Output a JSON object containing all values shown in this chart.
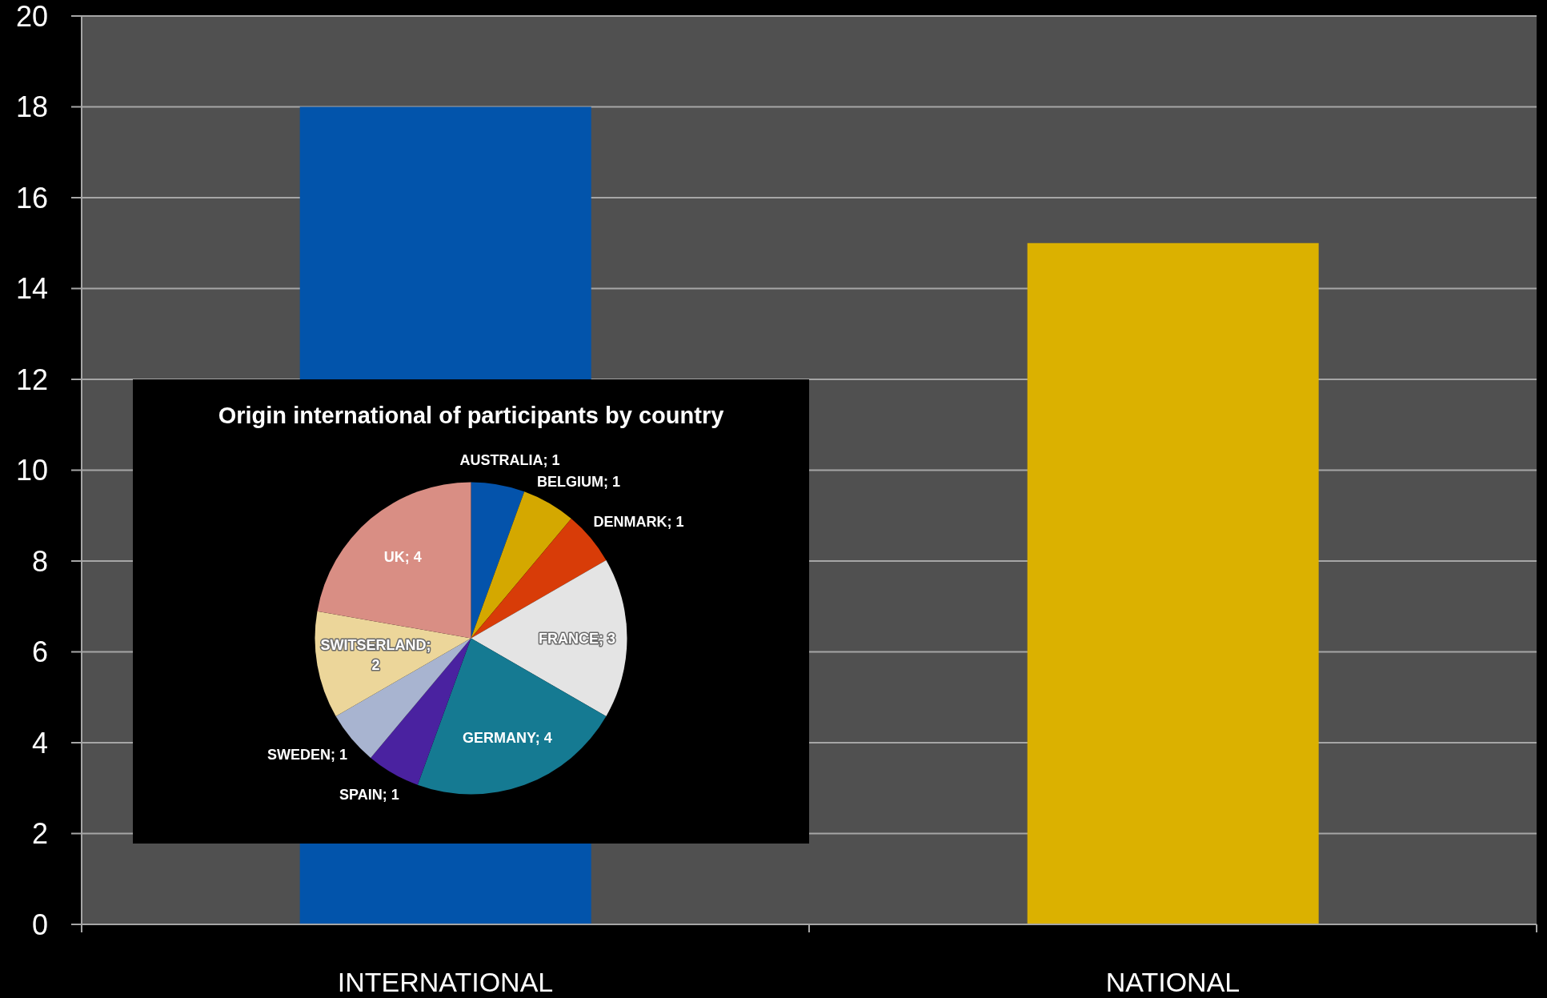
{
  "chart_data": [
    {
      "type": "bar",
      "categories": [
        "INTERNATIONAL",
        "NATIONAL"
      ],
      "values": [
        18,
        15
      ],
      "colors": [
        "#0254ab",
        "#dbb100"
      ],
      "ylim": [
        0,
        20
      ],
      "yticks": [
        0,
        2,
        4,
        6,
        8,
        10,
        12,
        14,
        16,
        18,
        20
      ],
      "grid": "y"
    },
    {
      "type": "pie",
      "title": "Origin international of participants by country",
      "categories": [
        null,
        null,
        null,
        null,
        null,
        null,
        null,
        null,
        null
      ],
      "values": [
        1,
        1,
        1,
        3,
        4,
        1,
        1,
        2,
        4
      ],
      "colors": [
        "#0453ab",
        "#d4a800",
        "#d83c08",
        "#e4e4e4",
        "#157a92",
        "#4a22a0",
        "#a8b4d0",
        "#ecd69a",
        "#d98e84"
      ],
      "value_labels": [
        "AUSTRALIA; 1",
        "BELGIUM; 1",
        "DENMARK; 1",
        "FRANCE; 3",
        "GERMANY; 4",
        "SPAIN; 1",
        "SWEDEN; 1",
        "SWITSERLAND; 2",
        "UK; 4"
      ]
    }
  ]
}
